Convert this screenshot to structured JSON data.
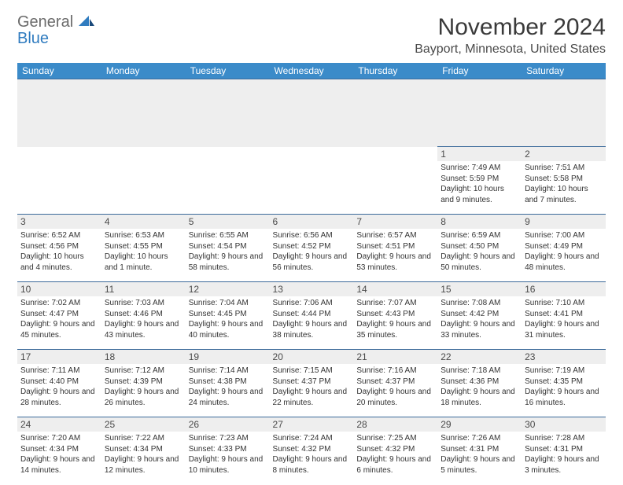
{
  "brand": {
    "word1": "General",
    "word2": "Blue",
    "color_gray": "#6b6b6b",
    "color_blue": "#2f7bbf"
  },
  "title": "November 2024",
  "location": "Bayport, Minnesota, United States",
  "colors": {
    "header_bg": "#3b8bc9",
    "header_text": "#ffffff",
    "row_border": "#3b6a9a",
    "daynum_bg": "#eeeeee",
    "page_bg": "#ffffff"
  },
  "weekdays": [
    "Sunday",
    "Monday",
    "Tuesday",
    "Wednesday",
    "Thursday",
    "Friday",
    "Saturday"
  ],
  "weeks": [
    [
      null,
      null,
      null,
      null,
      null,
      {
        "n": "1",
        "sr": "7:49 AM",
        "ss": "5:59 PM",
        "dl": "10 hours and 9 minutes."
      },
      {
        "n": "2",
        "sr": "7:51 AM",
        "ss": "5:58 PM",
        "dl": "10 hours and 7 minutes."
      }
    ],
    [
      {
        "n": "3",
        "sr": "6:52 AM",
        "ss": "4:56 PM",
        "dl": "10 hours and 4 minutes."
      },
      {
        "n": "4",
        "sr": "6:53 AM",
        "ss": "4:55 PM",
        "dl": "10 hours and 1 minute."
      },
      {
        "n": "5",
        "sr": "6:55 AM",
        "ss": "4:54 PM",
        "dl": "9 hours and 58 minutes."
      },
      {
        "n": "6",
        "sr": "6:56 AM",
        "ss": "4:52 PM",
        "dl": "9 hours and 56 minutes."
      },
      {
        "n": "7",
        "sr": "6:57 AM",
        "ss": "4:51 PM",
        "dl": "9 hours and 53 minutes."
      },
      {
        "n": "8",
        "sr": "6:59 AM",
        "ss": "4:50 PM",
        "dl": "9 hours and 50 minutes."
      },
      {
        "n": "9",
        "sr": "7:00 AM",
        "ss": "4:49 PM",
        "dl": "9 hours and 48 minutes."
      }
    ],
    [
      {
        "n": "10",
        "sr": "7:02 AM",
        "ss": "4:47 PM",
        "dl": "9 hours and 45 minutes."
      },
      {
        "n": "11",
        "sr": "7:03 AM",
        "ss": "4:46 PM",
        "dl": "9 hours and 43 minutes."
      },
      {
        "n": "12",
        "sr": "7:04 AM",
        "ss": "4:45 PM",
        "dl": "9 hours and 40 minutes."
      },
      {
        "n": "13",
        "sr": "7:06 AM",
        "ss": "4:44 PM",
        "dl": "9 hours and 38 minutes."
      },
      {
        "n": "14",
        "sr": "7:07 AM",
        "ss": "4:43 PM",
        "dl": "9 hours and 35 minutes."
      },
      {
        "n": "15",
        "sr": "7:08 AM",
        "ss": "4:42 PM",
        "dl": "9 hours and 33 minutes."
      },
      {
        "n": "16",
        "sr": "7:10 AM",
        "ss": "4:41 PM",
        "dl": "9 hours and 31 minutes."
      }
    ],
    [
      {
        "n": "17",
        "sr": "7:11 AM",
        "ss": "4:40 PM",
        "dl": "9 hours and 28 minutes."
      },
      {
        "n": "18",
        "sr": "7:12 AM",
        "ss": "4:39 PM",
        "dl": "9 hours and 26 minutes."
      },
      {
        "n": "19",
        "sr": "7:14 AM",
        "ss": "4:38 PM",
        "dl": "9 hours and 24 minutes."
      },
      {
        "n": "20",
        "sr": "7:15 AM",
        "ss": "4:37 PM",
        "dl": "9 hours and 22 minutes."
      },
      {
        "n": "21",
        "sr": "7:16 AM",
        "ss": "4:37 PM",
        "dl": "9 hours and 20 minutes."
      },
      {
        "n": "22",
        "sr": "7:18 AM",
        "ss": "4:36 PM",
        "dl": "9 hours and 18 minutes."
      },
      {
        "n": "23",
        "sr": "7:19 AM",
        "ss": "4:35 PM",
        "dl": "9 hours and 16 minutes."
      }
    ],
    [
      {
        "n": "24",
        "sr": "7:20 AM",
        "ss": "4:34 PM",
        "dl": "9 hours and 14 minutes."
      },
      {
        "n": "25",
        "sr": "7:22 AM",
        "ss": "4:34 PM",
        "dl": "9 hours and 12 minutes."
      },
      {
        "n": "26",
        "sr": "7:23 AM",
        "ss": "4:33 PM",
        "dl": "9 hours and 10 minutes."
      },
      {
        "n": "27",
        "sr": "7:24 AM",
        "ss": "4:32 PM",
        "dl": "9 hours and 8 minutes."
      },
      {
        "n": "28",
        "sr": "7:25 AM",
        "ss": "4:32 PM",
        "dl": "9 hours and 6 minutes."
      },
      {
        "n": "29",
        "sr": "7:26 AM",
        "ss": "4:31 PM",
        "dl": "9 hours and 5 minutes."
      },
      {
        "n": "30",
        "sr": "7:28 AM",
        "ss": "4:31 PM",
        "dl": "9 hours and 3 minutes."
      }
    ]
  ],
  "labels": {
    "sunrise": "Sunrise: ",
    "sunset": "Sunset: ",
    "daylight": "Daylight: "
  }
}
